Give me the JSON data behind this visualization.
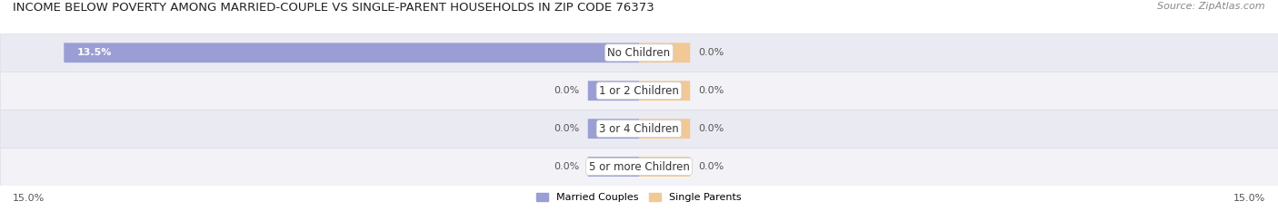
{
  "title": "INCOME BELOW POVERTY AMONG MARRIED-COUPLE VS SINGLE-PARENT HOUSEHOLDS IN ZIP CODE 76373",
  "source": "Source: ZipAtlas.com",
  "categories": [
    "No Children",
    "1 or 2 Children",
    "3 or 4 Children",
    "5 or more Children"
  ],
  "married_values": [
    13.5,
    0.0,
    0.0,
    0.0
  ],
  "single_values": [
    0.0,
    0.0,
    0.0,
    0.0
  ],
  "married_color": "#9B9ED4",
  "single_color": "#F2C896",
  "row_bg_colors": [
    "#EAEAF2",
    "#F2F2F7"
  ],
  "row_border_color": "#DCDCE8",
  "x_max": 15.0,
  "x_min": -15.0,
  "axis_label_left": "15.0%",
  "axis_label_right": "15.0%",
  "legend_married": "Married Couples",
  "legend_single": "Single Parents",
  "title_fontsize": 9.5,
  "source_fontsize": 8,
  "label_fontsize": 8,
  "category_fontsize": 8.5,
  "value_fontsize": 8,
  "figsize": [
    14.06,
    2.33
  ],
  "dpi": 100,
  "married_min_bar": 1.2,
  "single_min_bar": 1.2,
  "bar_height": 0.52,
  "fig_bg": "#FFFFFF",
  "plot_bg": "#FFFFFF"
}
